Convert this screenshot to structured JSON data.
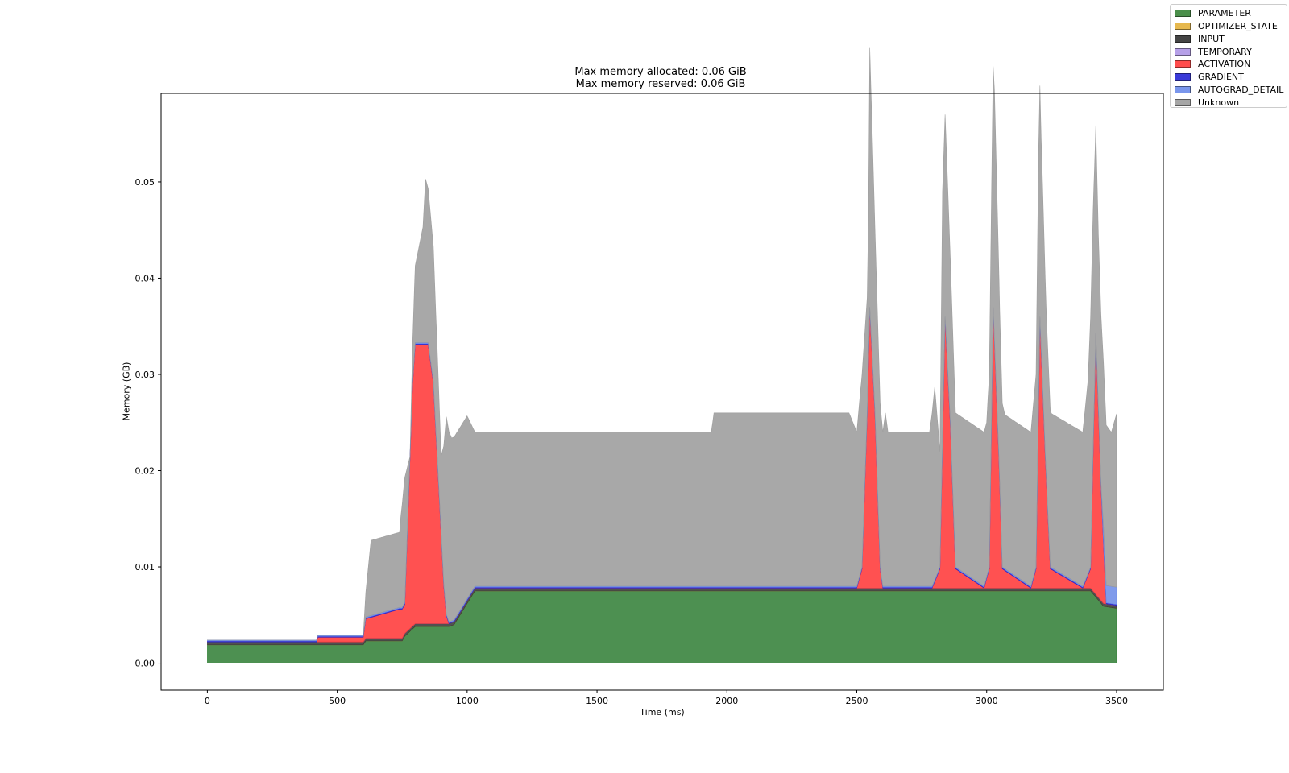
{
  "chart_data": {
    "type": "area",
    "title_lines": [
      "Max memory allocated: 0.06 GiB",
      "Max memory reserved: 0.06 GiB"
    ],
    "xlabel": "Time (ms)",
    "ylabel": "Memory (GB)",
    "xlim": [
      -178,
      3680
    ],
    "ylim": [
      -0.0028,
      0.0592
    ],
    "x_ticks": [
      0,
      500,
      1000,
      1500,
      2000,
      2500,
      3000,
      3500
    ],
    "y_ticks": [
      0.0,
      0.01,
      0.02,
      0.03,
      0.04,
      0.05
    ],
    "y_tick_labels": [
      "0.00",
      "0.01",
      "0.02",
      "0.03",
      "0.04",
      "0.05"
    ],
    "legend_position": "upper right (outside axes)",
    "grid": false,
    "stacked": true,
    "series": [
      {
        "name": "PARAMETER",
        "color": "#2e7d32",
        "x": [
          0,
          600,
          610,
          750,
          760,
          800,
          930,
          950,
          1030,
          2500,
          2530,
          2580,
          2790,
          2830,
          2870,
          2990,
          3020,
          3060,
          3170,
          3200,
          3240,
          3370,
          3400,
          3450,
          3500
        ],
        "values": [
          0.0019,
          0.0019,
          0.0023,
          0.0023,
          0.0028,
          0.0038,
          0.0038,
          0.004,
          0.0075,
          0.0075,
          0.0075,
          0.0075,
          0.0075,
          0.0075,
          0.0075,
          0.0075,
          0.0075,
          0.0075,
          0.0075,
          0.0075,
          0.0075,
          0.0075,
          0.0075,
          0.0059,
          0.0057
        ]
      },
      {
        "name": "OPTIMIZER_STATE",
        "color": "#e6b440",
        "x": [
          0,
          3500
        ],
        "values": [
          0,
          0
        ]
      },
      {
        "name": "INPUT",
        "color": "#333333",
        "x": [
          0,
          930,
          1030,
          3500
        ],
        "values": [
          0.0003,
          0.0003,
          0.0003,
          0.0003
        ]
      },
      {
        "name": "TEMPORARY",
        "color": "#a890e0",
        "x": [
          0,
          3500
        ],
        "values": [
          0,
          0
        ]
      },
      {
        "name": "ACTIVATION",
        "color": "#ff3333",
        "x": [
          0,
          420,
          425,
          600,
          610,
          740,
          760,
          790,
          800,
          850,
          870,
          910,
          920,
          930,
          2500,
          2520,
          2540,
          2550,
          2570,
          2590,
          2600,
          2790,
          2820,
          2840,
          2860,
          2880,
          2990,
          3010,
          3025,
          3045,
          3060,
          3170,
          3190,
          3205,
          3225,
          3245,
          3370,
          3400,
          3420,
          3440,
          3460
        ],
        "values": [
          0,
          0,
          0.0005,
          0.0005,
          0.002,
          0.003,
          0.003,
          0.025,
          0.029,
          0.029,
          0.025,
          0.004,
          0.0008,
          0,
          0,
          0.002,
          0.018,
          0.029,
          0.018,
          0.002,
          0,
          0,
          0.002,
          0.028,
          0.017,
          0.002,
          0,
          0.002,
          0.029,
          0.015,
          0.002,
          0,
          0.002,
          0.028,
          0.014,
          0.002,
          0,
          0.002,
          0.027,
          0.012,
          0
        ]
      },
      {
        "name": "GRADIENT",
        "color": "#2020d0",
        "x": [
          0,
          3500
        ],
        "values": [
          0.0001,
          0.0001
        ]
      },
      {
        "name": "AUTOGRAD_DETAIL",
        "color": "#6a8ae8",
        "x": [
          0,
          3440,
          3450,
          3500
        ],
        "values": [
          0.0001,
          0.0001,
          0.0018,
          0.0018
        ]
      },
      {
        "name": "Unknown",
        "color": "#999999",
        "x": [
          0,
          600,
          630,
          740,
          745,
          760,
          780,
          800,
          830,
          840,
          850,
          870,
          900,
          920,
          940,
          1000,
          1030,
          1940,
          1950,
          2470,
          2500,
          2520,
          2540,
          2545,
          2550,
          2570,
          2600,
          2610,
          2620,
          2780,
          2800,
          2820,
          2830,
          2840,
          2860,
          2880,
          2990,
          3000,
          3010,
          3020,
          3030,
          3050,
          3070,
          3170,
          3180,
          3190,
          3200,
          3210,
          3230,
          3250,
          3370,
          3380,
          3390,
          3400,
          3410,
          3430,
          3450,
          3480,
          3500
        ],
        "values": [
          0,
          0,
          0.0078,
          0.0078,
          0.0095,
          0.013,
          0.0,
          0.008,
          0.012,
          0.017,
          0.016,
          0.014,
          0.008,
          0.0205,
          0.019,
          0.019,
          0.016,
          0.016,
          0.018,
          0.018,
          0.016,
          0.02,
          0.012,
          0.015,
          0.027,
          0.019,
          0.016,
          0.018,
          0.016,
          0.016,
          0.02,
          0.012,
          0.026,
          0.021,
          0.017,
          0.016,
          0.016,
          0.016,
          0.02,
          0.024,
          0.026,
          0.018,
          0.016,
          0.016,
          0.018,
          0.02,
          0.026,
          0.022,
          0.017,
          0.016,
          0.016,
          0.018,
          0.02,
          0.026,
          0.025,
          0.018,
          0.017,
          0.016,
          0.018
        ]
      }
    ]
  }
}
